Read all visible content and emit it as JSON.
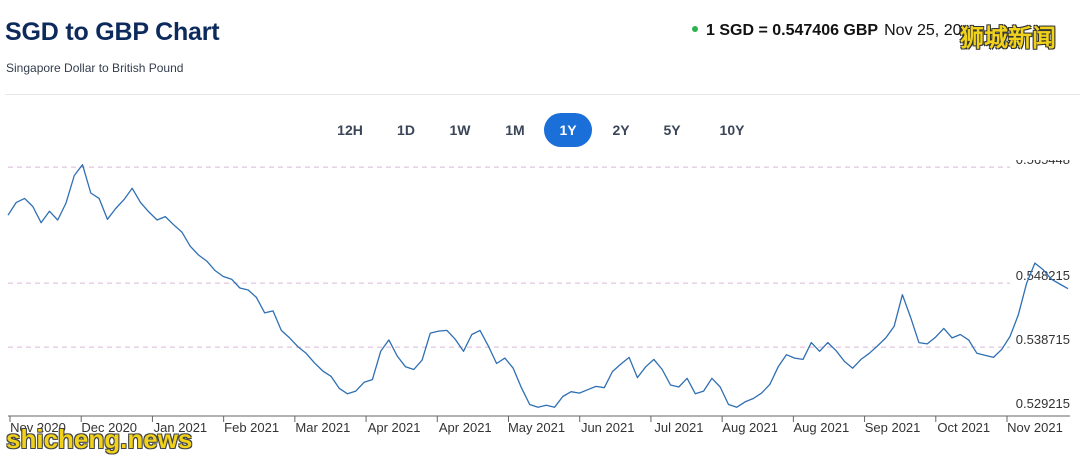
{
  "header": {
    "title": "SGD to GBP Chart",
    "subtitle": "Singapore Dollar to British Pound",
    "rate_pair": "1 SGD = 0.547406 GBP",
    "rate_date": "Nov 25, 20"
  },
  "timeframes": {
    "items": [
      "12H",
      "1D",
      "1W",
      "1M",
      "1Y",
      "2Y",
      "5Y",
      "10Y"
    ],
    "selected": "1Y"
  },
  "watermarks": {
    "top": "狮城新闻",
    "bottom": "shicheng.news"
  },
  "colors": {
    "line": "#2f6fb3",
    "accent": "#1a6fd8",
    "gridline": "#d9b6d9",
    "live_dot": "#2bb24c"
  },
  "chart_data": {
    "type": "line",
    "title": "SGD to GBP Chart",
    "xlabel": "",
    "ylabel": "",
    "ylim": [
      0.5285,
      0.5665
    ],
    "y_ticks": [
      0.565448,
      0.548215,
      0.538715,
      0.529215
    ],
    "x_ticks": [
      "Nov 2020",
      "Dec 2020",
      "Jan 2021",
      "Feb 2021",
      "Mar 2021",
      "Apr 2021",
      "Apr 2021",
      "May 2021",
      "Jun 2021",
      "Jul 2021",
      "Aug 2021",
      "Aug 2021",
      "Sep 2021",
      "Oct 2021",
      "Nov 2021"
    ],
    "grid": "horizontal dashed",
    "legend": "none",
    "series": [
      {
        "values": [
          0.5583,
          0.5602,
          0.5608,
          0.5596,
          0.5572,
          0.5589,
          0.5576,
          0.5601,
          0.5642,
          0.5658,
          0.5616,
          0.5608,
          0.5577,
          0.5593,
          0.5606,
          0.5623,
          0.5602,
          0.5588,
          0.5576,
          0.5581,
          0.5569,
          0.5558,
          0.5537,
          0.5524,
          0.5515,
          0.5501,
          0.5492,
          0.5488,
          0.5475,
          0.5472,
          0.5461,
          0.5438,
          0.5441,
          0.5412,
          0.5401,
          0.5388,
          0.5378,
          0.5364,
          0.5352,
          0.5344,
          0.5326,
          0.5318,
          0.5322,
          0.5335,
          0.5339,
          0.5381,
          0.5398,
          0.5374,
          0.5358,
          0.5354,
          0.5368,
          0.5408,
          0.5411,
          0.5412,
          0.5399,
          0.5381,
          0.5406,
          0.5412,
          0.5389,
          0.5363,
          0.5371,
          0.5356,
          0.5327,
          0.5302,
          0.5298,
          0.5301,
          0.5298,
          0.5314,
          0.5321,
          0.5319,
          0.5324,
          0.5329,
          0.5327,
          0.5351,
          0.5362,
          0.5372,
          0.5342,
          0.5358,
          0.5369,
          0.5354,
          0.5331,
          0.5328,
          0.5341,
          0.5318,
          0.5322,
          0.5341,
          0.5328,
          0.5302,
          0.5298,
          0.5306,
          0.5311,
          0.5319,
          0.5332,
          0.5358,
          0.5376,
          0.5371,
          0.5369,
          0.5394,
          0.5381,
          0.5394,
          0.5382,
          0.5366,
          0.5356,
          0.5369,
          0.5378,
          0.5389,
          0.5401,
          0.5418,
          0.5465,
          0.5431,
          0.5394,
          0.5392,
          0.5402,
          0.5415,
          0.5401,
          0.5406,
          0.5398,
          0.5378,
          0.5375,
          0.5372,
          0.5384,
          0.5403,
          0.5435,
          0.5482,
          0.5512,
          0.5502,
          0.5488,
          0.5481,
          0.5474
        ]
      }
    ]
  }
}
